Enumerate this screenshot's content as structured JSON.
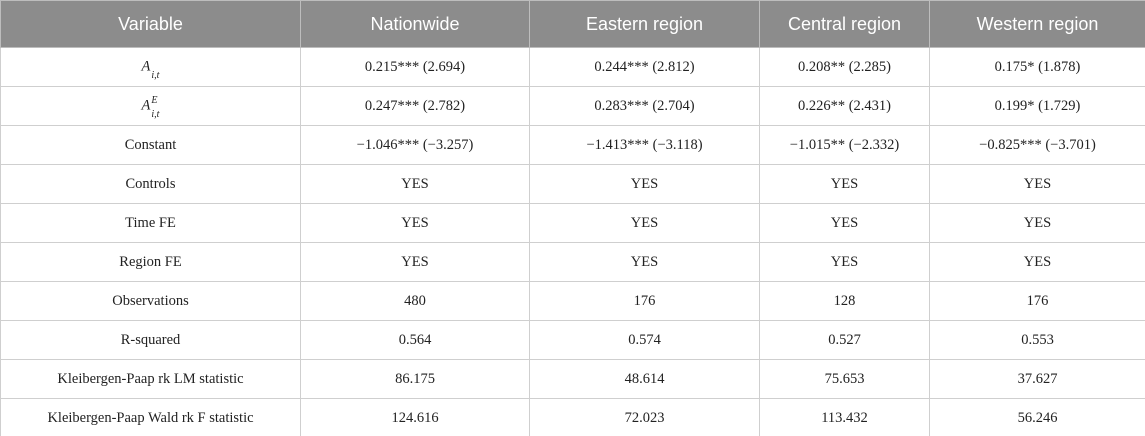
{
  "table": {
    "header": [
      "Variable",
      "Nationwide",
      "Eastern region",
      "Central region",
      "Western region"
    ],
    "rows": [
      [
        {
          "base": "A",
          "sub": "i,t"
        },
        "0.215*** (2.694)",
        "0.244*** (2.812)",
        "0.208** (2.285)",
        "0.175* (1.878)"
      ],
      [
        {
          "base": "A",
          "sup": "E",
          "sub": "i,t"
        },
        "0.247*** (2.782)",
        "0.283*** (2.704)",
        "0.226** (2.431)",
        "0.199* (1.729)"
      ],
      [
        "Constant",
        "−1.046*** (−3.257)",
        "−1.413*** (−3.118)",
        "−1.015** (−2.332)",
        "−0.825*** (−3.701)"
      ],
      [
        "Controls",
        "YES",
        "YES",
        "YES",
        "YES"
      ],
      [
        "Time FE",
        "YES",
        "YES",
        "YES",
        "YES"
      ],
      [
        "Region FE",
        "YES",
        "YES",
        "YES",
        "YES"
      ],
      [
        "Observations",
        "480",
        "176",
        "128",
        "176"
      ],
      [
        "R-squared",
        "0.564",
        "0.574",
        "0.527",
        "0.553"
      ],
      [
        "Kleibergen-Paap rk LM statistic",
        "86.175",
        "48.614",
        "75.653",
        "37.627"
      ],
      [
        "Kleibergen-Paap Wald rk F statistic",
        "124.616",
        "72.023",
        "113.432",
        "56.246"
      ]
    ]
  }
}
